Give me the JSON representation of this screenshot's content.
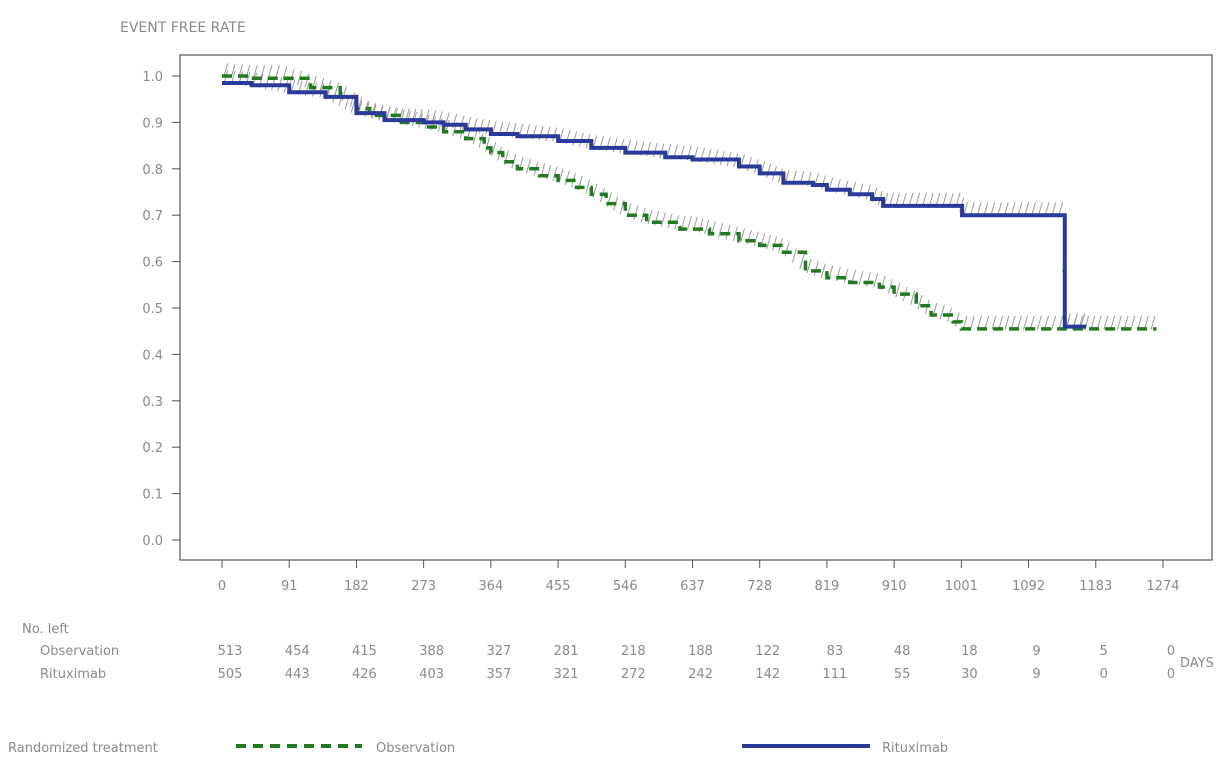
{
  "chart_data": {
    "type": "line",
    "title": "EVENT FREE RATE",
    "xlabel": "DAYS",
    "ylabel": "",
    "x_ticks": [
      0,
      91,
      182,
      273,
      364,
      455,
      546,
      637,
      728,
      819,
      910,
      1001,
      1092,
      1183,
      1274
    ],
    "y_ticks": [
      "0.0",
      "0.1",
      "0.2",
      "0.3",
      "0.4",
      "0.5",
      "0.6",
      "0.7",
      "0.8",
      "0.9",
      "1.0"
    ],
    "xlim": [
      0,
      1274
    ],
    "ylim": [
      0,
      1.0
    ],
    "grid": false,
    "series": [
      {
        "name": "Observation",
        "style": "dashed",
        "color": "#1e7b1e",
        "points": [
          [
            0,
            1.0
          ],
          [
            40,
            0.995
          ],
          [
            80,
            0.995
          ],
          [
            120,
            0.975
          ],
          [
            160,
            0.955
          ],
          [
            182,
            0.93
          ],
          [
            200,
            0.915
          ],
          [
            240,
            0.9
          ],
          [
            273,
            0.89
          ],
          [
            300,
            0.88
          ],
          [
            330,
            0.865
          ],
          [
            355,
            0.845
          ],
          [
            364,
            0.835
          ],
          [
            380,
            0.815
          ],
          [
            400,
            0.8
          ],
          [
            430,
            0.785
          ],
          [
            455,
            0.775
          ],
          [
            480,
            0.76
          ],
          [
            500,
            0.745
          ],
          [
            520,
            0.725
          ],
          [
            546,
            0.7
          ],
          [
            575,
            0.685
          ],
          [
            620,
            0.67
          ],
          [
            637,
            0.67
          ],
          [
            660,
            0.66
          ],
          [
            700,
            0.645
          ],
          [
            728,
            0.635
          ],
          [
            760,
            0.62
          ],
          [
            790,
            0.58
          ],
          [
            819,
            0.565
          ],
          [
            850,
            0.555
          ],
          [
            890,
            0.545
          ],
          [
            910,
            0.53
          ],
          [
            940,
            0.505
          ],
          [
            960,
            0.485
          ],
          [
            990,
            0.47
          ],
          [
            1001,
            0.455
          ],
          [
            1050,
            0.455
          ],
          [
            1092,
            0.455
          ],
          [
            1150,
            0.455
          ],
          [
            1183,
            0.455
          ],
          [
            1265,
            0.455
          ]
        ]
      },
      {
        "name": "Rituximab",
        "style": "solid",
        "color": "#2a3a9a",
        "points": [
          [
            0,
            0.985
          ],
          [
            40,
            0.98
          ],
          [
            91,
            0.965
          ],
          [
            140,
            0.955
          ],
          [
            182,
            0.92
          ],
          [
            220,
            0.905
          ],
          [
            273,
            0.9
          ],
          [
            300,
            0.895
          ],
          [
            330,
            0.885
          ],
          [
            364,
            0.875
          ],
          [
            400,
            0.87
          ],
          [
            455,
            0.86
          ],
          [
            500,
            0.845
          ],
          [
            546,
            0.835
          ],
          [
            600,
            0.825
          ],
          [
            637,
            0.82
          ],
          [
            700,
            0.805
          ],
          [
            728,
            0.79
          ],
          [
            760,
            0.77
          ],
          [
            800,
            0.765
          ],
          [
            819,
            0.755
          ],
          [
            850,
            0.745
          ],
          [
            880,
            0.735
          ],
          [
            895,
            0.72
          ],
          [
            910,
            0.72
          ],
          [
            1001,
            0.72
          ],
          [
            1002,
            0.7
          ],
          [
            1140,
            0.7
          ],
          [
            1141,
            0.46
          ],
          [
            1170,
            0.46
          ]
        ]
      }
    ]
  },
  "risk_table": {
    "header": "No. left",
    "rows": [
      {
        "label": "Observation",
        "values": [
          "513",
          "454",
          "415",
          "388",
          "327",
          "281",
          "218",
          "188",
          "122",
          "83",
          "48",
          "18",
          "9",
          "5",
          "0"
        ]
      },
      {
        "label": "Rituximab",
        "values": [
          "505",
          "443",
          "426",
          "403",
          "357",
          "321",
          "272",
          "242",
          "142",
          "111",
          "55",
          "30",
          "9",
          "0",
          "0"
        ]
      }
    ]
  },
  "legend": {
    "title": "Randomized treatment",
    "items": [
      {
        "label": "Observation",
        "style": "dashed",
        "color": "#1e7b1e"
      },
      {
        "label": "Rituximab",
        "style": "solid",
        "color": "#2a3a9a"
      }
    ]
  }
}
